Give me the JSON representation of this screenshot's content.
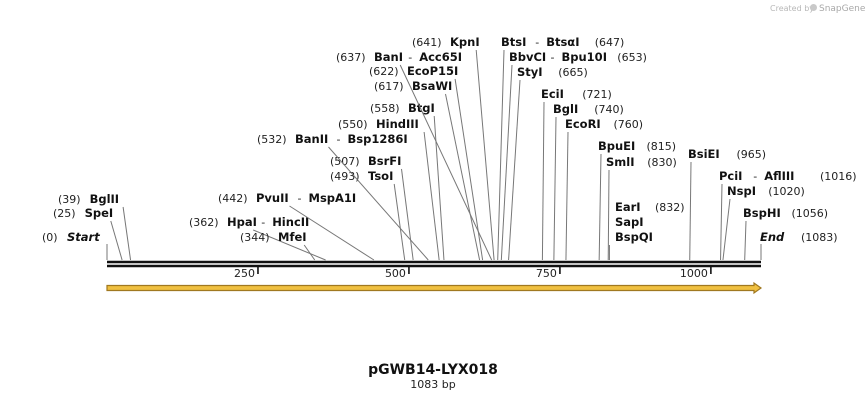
{
  "credit": {
    "prefix": "Created by",
    "brand": "SnapGene"
  },
  "map": {
    "name": "pGWB14-LYX018",
    "length_label": "1083 bp",
    "length": 1083,
    "start_pos": "(0)",
    "start_label": "Start",
    "end_pos": "(1083)",
    "end_label": "End",
    "ticks": [
      {
        "value": 250,
        "label": "250"
      },
      {
        "value": 500,
        "label": "500"
      },
      {
        "value": 750,
        "label": "750"
      },
      {
        "value": 1000,
        "label": "1000"
      }
    ],
    "feature": {
      "start": 0,
      "end": 1083,
      "color": "#f0c040",
      "outline": "#a07820"
    }
  },
  "sites": [
    {
      "pos": 39,
      "pos_label": "(39)",
      "names": [
        "BglII"
      ]
    },
    {
      "pos": 25,
      "pos_label": "(25)",
      "names": [
        "SpeI"
      ]
    },
    {
      "pos": 362,
      "pos_label": "(362)",
      "names": [
        "HpaI",
        "HincII"
      ]
    },
    {
      "pos": 344,
      "pos_label": "(344)",
      "names": [
        "MfeI"
      ]
    },
    {
      "pos": 442,
      "pos_label": "(442)",
      "names": [
        "PvuII",
        "MspA1I"
      ]
    },
    {
      "pos": 507,
      "pos_label": "(507)",
      "names": [
        "BsrFI"
      ]
    },
    {
      "pos": 493,
      "pos_label": "(493)",
      "names": [
        "TsoI"
      ]
    },
    {
      "pos": 532,
      "pos_label": "(532)",
      "names": [
        "BanII",
        "Bsp1286I"
      ]
    },
    {
      "pos": 550,
      "pos_label": "(550)",
      "names": [
        "HindIII"
      ]
    },
    {
      "pos": 558,
      "pos_label": "(558)",
      "names": [
        "BtgI"
      ]
    },
    {
      "pos": 617,
      "pos_label": "(617)",
      "names": [
        "BsaWI"
      ]
    },
    {
      "pos": 622,
      "pos_label": "(622)",
      "names": [
        "EcoP15I"
      ]
    },
    {
      "pos": 637,
      "pos_label": "(637)",
      "names": [
        "BanI",
        "Acc65I"
      ]
    },
    {
      "pos": 641,
      "pos_label": "(641)",
      "names": [
        "KpnI"
      ]
    },
    {
      "pos": 647,
      "pos_label": "(647)",
      "names": [
        "BtsI",
        "BtsαI"
      ]
    },
    {
      "pos": 653,
      "pos_label": "(653)",
      "names": [
        "BbvCI",
        "Bpu10I"
      ]
    },
    {
      "pos": 665,
      "pos_label": "(665)",
      "names": [
        "StyI"
      ]
    },
    {
      "pos": 721,
      "pos_label": "(721)",
      "names": [
        "EciI"
      ]
    },
    {
      "pos": 740,
      "pos_label": "(740)",
      "names": [
        "BglI"
      ]
    },
    {
      "pos": 760,
      "pos_label": "(760)",
      "names": [
        "EcoRI"
      ]
    },
    {
      "pos": 815,
      "pos_label": "(815)",
      "names": [
        "BpuEI"
      ]
    },
    {
      "pos": 830,
      "pos_label": "(830)",
      "names": [
        "SmlI"
      ]
    },
    {
      "pos": 832,
      "pos_label": "(832)",
      "names": [
        "EarI",
        "SapI",
        "BspQI"
      ]
    },
    {
      "pos": 965,
      "pos_label": "(965)",
      "names": [
        "BsiEI"
      ]
    },
    {
      "pos": 1016,
      "pos_label": "(1016)",
      "names": [
        "PciI",
        "AflIII"
      ]
    },
    {
      "pos": 1020,
      "pos_label": "(1020)",
      "names": [
        "NspI"
      ]
    },
    {
      "pos": 1056,
      "pos_label": "(1056)",
      "names": [
        "BspHI"
      ]
    }
  ]
}
